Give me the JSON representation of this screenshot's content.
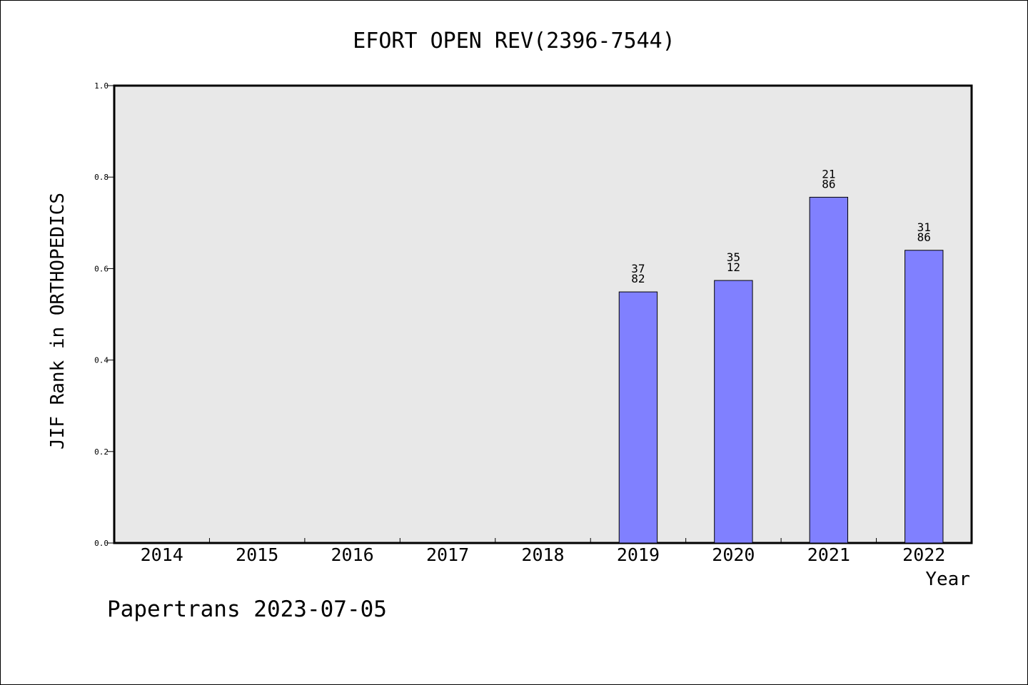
{
  "chart_data": {
    "type": "bar",
    "title": "EFORT OPEN REV(2396-7544)",
    "xlabel": "Year",
    "ylabel": "JIF Rank in ORTHOPEDICS",
    "categories": [
      "2014",
      "2015",
      "2016",
      "2017",
      "2018",
      "2019",
      "2020",
      "2021",
      "2022"
    ],
    "values": [
      null,
      null,
      null,
      null,
      null,
      0.549,
      0.574,
      0.756,
      0.64
    ],
    "bar_labels": [
      null,
      null,
      null,
      null,
      null,
      [
        "37",
        "82"
      ],
      [
        "35",
        "12"
      ],
      [
        "21",
        "86"
      ],
      [
        "31",
        "86"
      ]
    ],
    "ylim": [
      0,
      1.0
    ],
    "yticks": [
      "0.0",
      "0.2",
      "0.4",
      "0.6",
      "0.8",
      "1.0"
    ],
    "grid": false,
    "colors": {
      "bar": "#8080ff",
      "plot_background": "#e8e8e8"
    }
  },
  "footer": {
    "text": "Papertrans 2023-07-05"
  }
}
